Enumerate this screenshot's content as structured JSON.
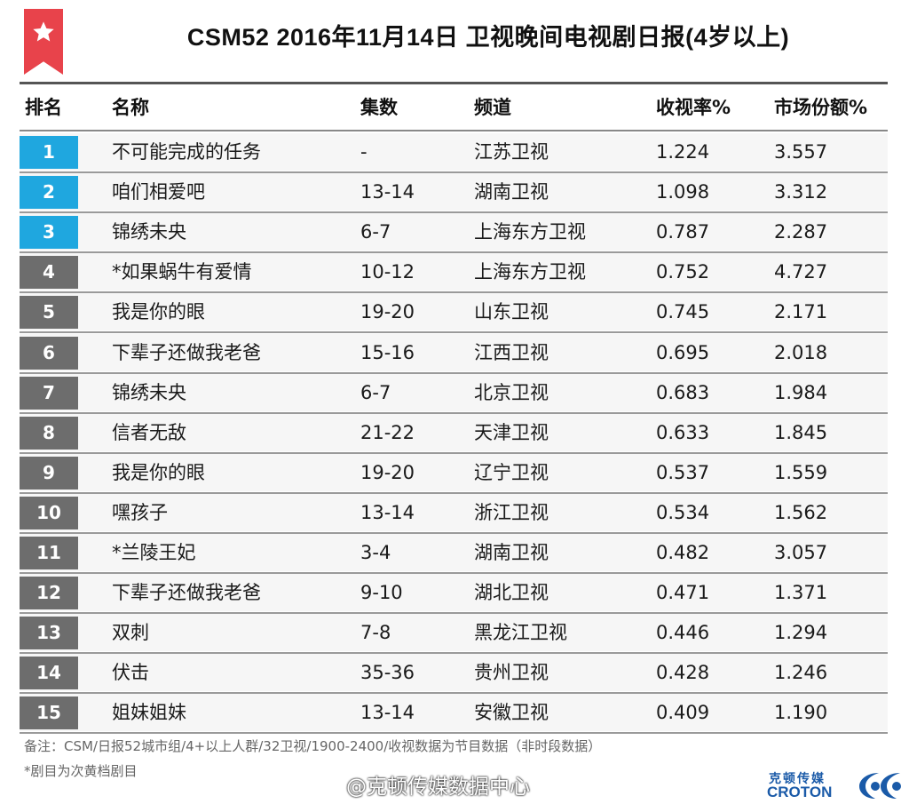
{
  "title": "CSM52  2016年11月14日  卫视晚间电视剧日报(4岁以上)",
  "colors": {
    "accent_red": "#e8434b",
    "rank_top": "#1fa7df",
    "rank_other": "#6d6d6d",
    "brand_blue": "#1a5aa8"
  },
  "icons": {
    "badge": "star-icon"
  },
  "columns": {
    "rank": "排名",
    "name": "名称",
    "episodes": "集数",
    "channel": "频道",
    "rating": "收视率%",
    "share": "市场份额%"
  },
  "rows": [
    {
      "rank": "1",
      "name": "不可能完成的任务",
      "episodes": "-",
      "channel": "江苏卫视",
      "rating": "1.224",
      "share": "3.557"
    },
    {
      "rank": "2",
      "name": "咱们相爱吧",
      "episodes": "13-14",
      "channel": "湖南卫视",
      "rating": "1.098",
      "share": "3.312"
    },
    {
      "rank": "3",
      "name": "锦绣未央",
      "episodes": "6-7",
      "channel": "上海东方卫视",
      "rating": "0.787",
      "share": "2.287"
    },
    {
      "rank": "4",
      "name": "*如果蜗牛有爱情",
      "episodes": "10-12",
      "channel": "上海东方卫视",
      "rating": "0.752",
      "share": "4.727"
    },
    {
      "rank": "5",
      "name": "我是你的眼",
      "episodes": "19-20",
      "channel": "山东卫视",
      "rating": "0.745",
      "share": "2.171"
    },
    {
      "rank": "6",
      "name": "下辈子还做我老爸",
      "episodes": "15-16",
      "channel": "江西卫视",
      "rating": "0.695",
      "share": "2.018"
    },
    {
      "rank": "7",
      "name": "锦绣未央",
      "episodes": "6-7",
      "channel": "北京卫视",
      "rating": "0.683",
      "share": "1.984"
    },
    {
      "rank": "8",
      "name": "信者无敌",
      "episodes": "21-22",
      "channel": "天津卫视",
      "rating": "0.633",
      "share": "1.845"
    },
    {
      "rank": "9",
      "name": "我是你的眼",
      "episodes": "19-20",
      "channel": "辽宁卫视",
      "rating": "0.537",
      "share": "1.559"
    },
    {
      "rank": "10",
      "name": "嘿孩子",
      "episodes": "13-14",
      "channel": "浙江卫视",
      "rating": "0.534",
      "share": "1.562"
    },
    {
      "rank": "11",
      "name": "*兰陵王妃",
      "episodes": "3-4",
      "channel": "湖南卫视",
      "rating": "0.482",
      "share": "3.057"
    },
    {
      "rank": "12",
      "name": "下辈子还做我老爸",
      "episodes": "9-10",
      "channel": "湖北卫视",
      "rating": "0.471",
      "share": "1.371"
    },
    {
      "rank": "13",
      "name": "双刺",
      "episodes": "7-8",
      "channel": "黑龙江卫视",
      "rating": "0.446",
      "share": "1.294"
    },
    {
      "rank": "14",
      "name": "伏击",
      "episodes": "35-36",
      "channel": "贵州卫视",
      "rating": "0.428",
      "share": "1.246"
    },
    {
      "rank": "15",
      "name": "姐妹姐妹",
      "episodes": "13-14",
      "channel": "安徽卫视",
      "rating": "0.409",
      "share": "1.190"
    }
  ],
  "footer": {
    "note1": "备注：CSM/日报52城市组/4+以上人群/32卫视/1900-2400/收视数据为节目数据（非时段数据）",
    "note2": "*剧目为次黄档剧目",
    "watermark": "@克顿传媒数据中心",
    "logo_cn": "克顿传媒",
    "logo_en": "CROTON"
  }
}
